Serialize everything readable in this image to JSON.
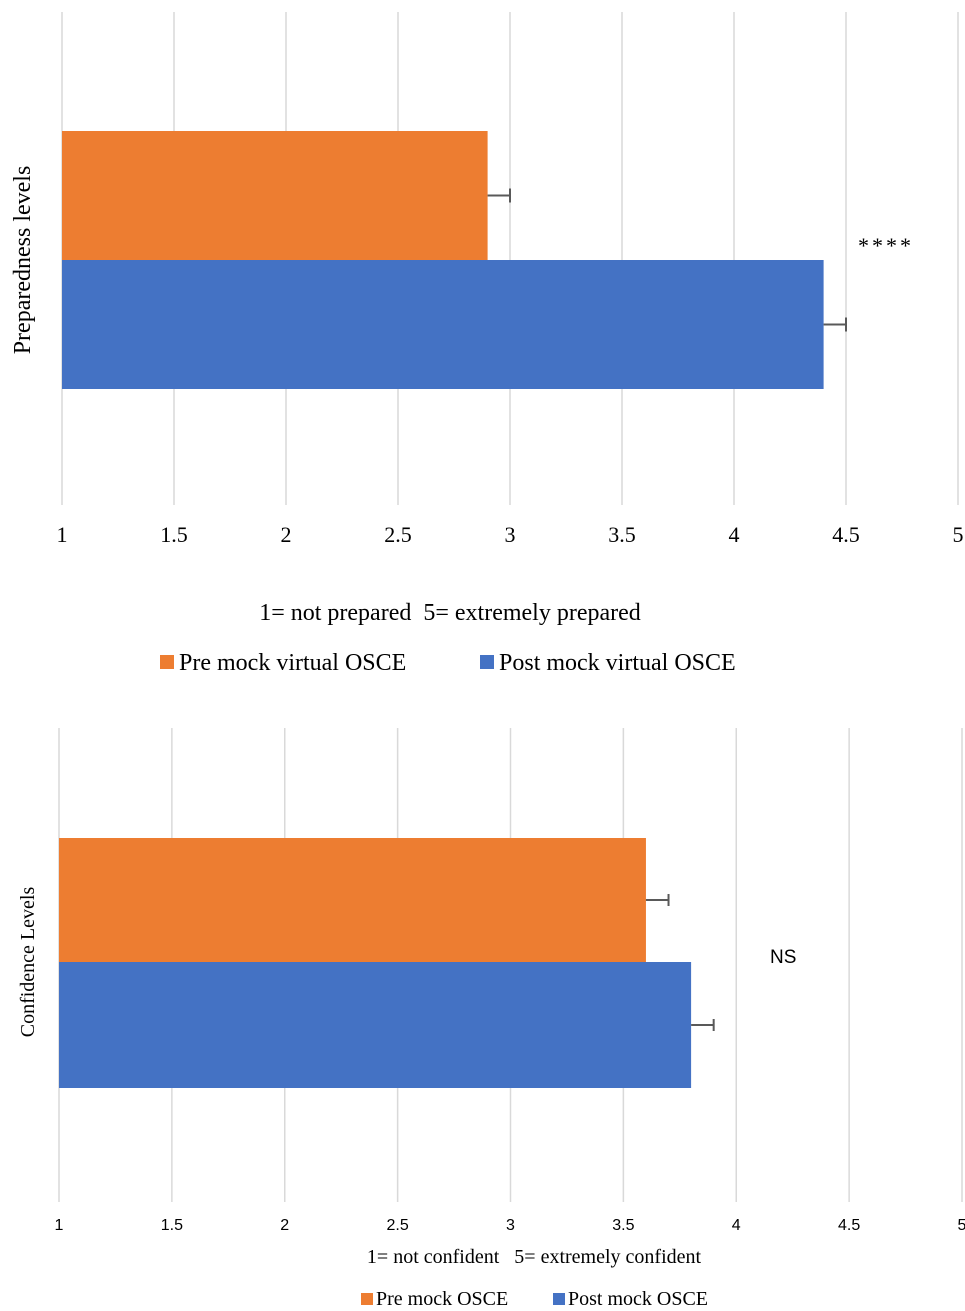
{
  "chart_data": [
    {
      "type": "bar",
      "orientation": "horizontal",
      "ylabel": "Preparedness levels",
      "xlabel": "1= not prepared  5= extremely prepared",
      "xlim": [
        1,
        5
      ],
      "x_ticks": [
        "1",
        "1.5",
        "2",
        "2.5",
        "3",
        "3.5",
        "4",
        "4.5",
        "5"
      ],
      "grid": true,
      "legend_position": "bottom",
      "series": [
        {
          "name": "Pre mock virtual OSCE",
          "values": [
            2.9
          ],
          "error": [
            0.1
          ],
          "color": "#ED7D31"
        },
        {
          "name": "Post mock virtual OSCE",
          "values": [
            4.4
          ],
          "error": [
            0.1
          ],
          "color": "#4472C4"
        }
      ],
      "annotation": "****"
    },
    {
      "type": "bar",
      "orientation": "horizontal",
      "ylabel": "Confidence Levels",
      "xlabel": "1= not confident   5= extremely confident",
      "xlim": [
        1,
        5
      ],
      "x_ticks": [
        "1",
        "1.5",
        "2",
        "2.5",
        "3",
        "3.5",
        "4",
        "4.5",
        "5"
      ],
      "grid": true,
      "legend_position": "bottom",
      "series": [
        {
          "name": "Pre mock OSCE",
          "values": [
            3.6
          ],
          "error": [
            0.1
          ],
          "color": "#ED7D31"
        },
        {
          "name": "Post mock OSCE",
          "values": [
            3.8
          ],
          "error": [
            0.1
          ],
          "color": "#4472C4"
        }
      ],
      "annotation": "NS"
    }
  ]
}
